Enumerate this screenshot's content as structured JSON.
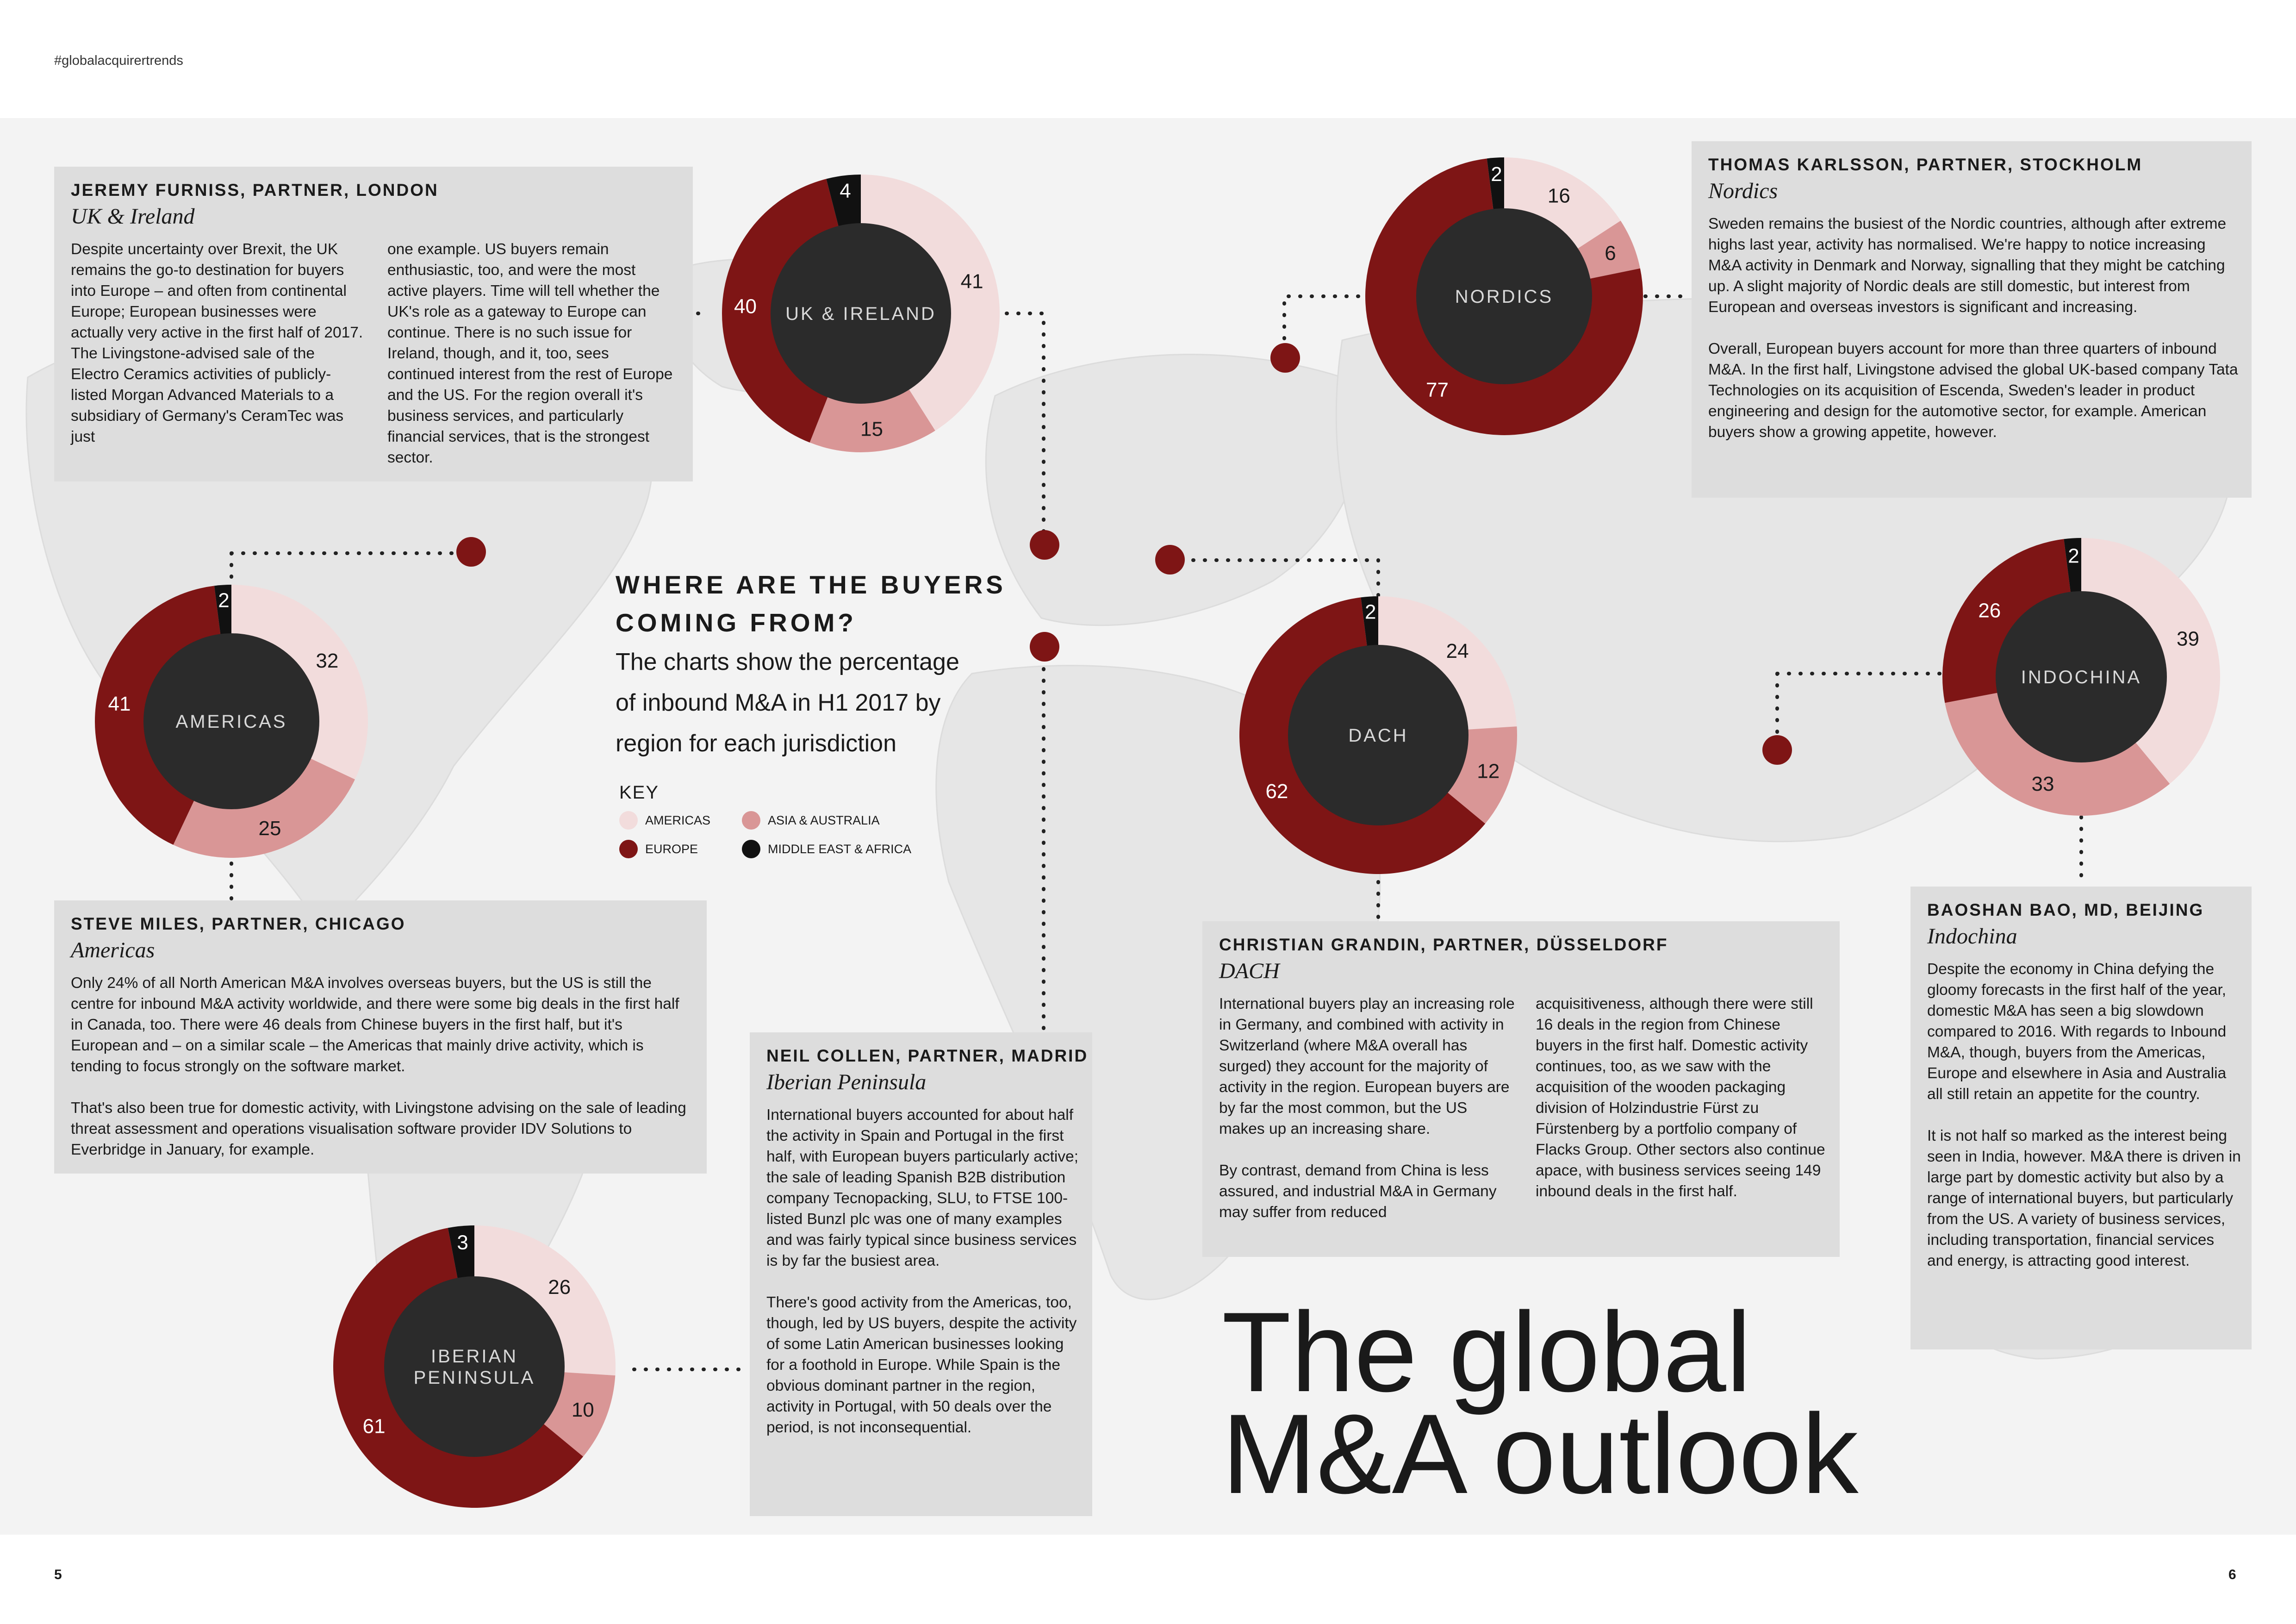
{
  "page": {
    "hashtag": "#globalacquirertrends",
    "page_left": "5",
    "page_right": "6",
    "title_line1": "The global",
    "title_line2": "M&A outlook"
  },
  "intro": {
    "heading_line1": "WHERE ARE THE BUYERS",
    "heading_line2": "COMING FROM?",
    "subtitle_line1": "The charts show the percentage",
    "subtitle_line2": "of inbound M&A in H1 2017 by",
    "subtitle_line3": "region for each jurisdiction"
  },
  "key": {
    "label": "KEY",
    "americas": "AMERICAS",
    "asia_australia": "ASIA & AUSTRALIA",
    "europe": "EUROPE",
    "middle_east_africa": "MIDDLE EAST & AFRICA"
  },
  "colors": {
    "americas": "#f2dcdc",
    "asia_australia": "#d99696",
    "europe": "#7e1515",
    "middle_east_africa": "#111111",
    "center": "#2b2b2b",
    "marker": "#7e1515"
  },
  "chart_data": [
    {
      "type": "pie",
      "title": "UK & IRELAND",
      "series": [
        "Americas",
        "Asia & Australia",
        "Europe",
        "Middle East & Africa"
      ],
      "values": [
        41,
        15,
        40,
        4
      ]
    },
    {
      "type": "pie",
      "title": "NORDICS",
      "series": [
        "Americas",
        "Asia & Australia",
        "Europe",
        "Middle East & Africa"
      ],
      "values": [
        16,
        6,
        77,
        2
      ]
    },
    {
      "type": "pie",
      "title": "AMERICAS",
      "series": [
        "Americas",
        "Asia & Australia",
        "Europe",
        "Middle East & Africa"
      ],
      "values": [
        32,
        25,
        41,
        2
      ]
    },
    {
      "type": "pie",
      "title": "DACH",
      "series": [
        "Americas",
        "Asia & Australia",
        "Europe",
        "Middle East & Africa"
      ],
      "values": [
        24,
        12,
        62,
        2
      ]
    },
    {
      "type": "pie",
      "title": "INDOCHINA",
      "series": [
        "Americas",
        "Asia & Australia",
        "Europe",
        "Middle East & Africa"
      ],
      "values": [
        39,
        33,
        26,
        2
      ]
    },
    {
      "type": "pie",
      "title": "IBERIAN PENINSULA",
      "title_lines": [
        "IBERIAN",
        "PENINSULA"
      ],
      "series": [
        "Americas",
        "Asia & Australia",
        "Europe",
        "Middle East & Africa"
      ],
      "values": [
        26,
        10,
        61,
        3
      ]
    }
  ],
  "boxes": {
    "uk": {
      "author": "JEREMY FURNISS, PARTNER, LONDON",
      "region": "UK & Ireland",
      "col1": "Despite uncertainty over Brexit, the UK remains the go-to destination for buyers into Europe – and often from continental Europe; European businesses were actually very active in the first half of 2017. The Livingstone-advised sale of the Electro Ceramics activities of publicly-listed Morgan Advanced Materials to a subsidiary of Germany's CeramTec was just",
      "col2": "one example. US buyers remain enthusiastic, too, and were the most active players. Time will tell whether the UK's role as a gateway to Europe can continue. There is no such issue for Ireland, though, and it, too, sees continued interest from the rest of Europe and the US. For the region overall it's business services, and particularly financial services, that is the strongest sector."
    },
    "nordics": {
      "author": "THOMAS KARLSSON, PARTNER, STOCKHOLM",
      "region": "Nordics",
      "p1": "Sweden remains the busiest of the Nordic countries, although after extreme highs last year, activity has normalised. We're happy to notice increasing M&A activity in Denmark and Norway, signalling that they might be catching up. A slight majority of Nordic deals are still domestic, but interest from European and overseas investors is significant and increasing.",
      "p2": "Overall, European buyers account for more than three quarters of inbound M&A. In the first half, Livingstone advised the global UK-based company Tata Technologies on its acquisition of Escenda, Sweden's leader in product engineering and design for the automotive sector, for example. American buyers show a growing appetite, however."
    },
    "americas": {
      "author": "STEVE MILES, PARTNER, CHICAGO",
      "region": "Americas",
      "p1": "Only 24% of all North American M&A involves overseas buyers, but the US is still the centre for inbound M&A activity worldwide, and there were some big deals in the first half in Canada, too. There were 46 deals from Chinese buyers in the first half, but it's European and – on a similar scale – the Americas that mainly drive activity, which is tending to focus strongly on the software market.",
      "p2": "That's also been true for domestic activity, with Livingstone advising on the sale of leading threat assessment and operations visualisation software provider IDV Solutions to Everbridge in January, for example."
    },
    "iberian": {
      "author": "NEIL COLLEN, PARTNER, MADRID",
      "region": "Iberian Peninsula",
      "p1": "International buyers accounted for about half the activity in Spain and Portugal in the first half, with European buyers particularly active; the sale of leading Spanish B2B distribution company Tecnopacking, SLU, to FTSE 100-listed Bunzl plc was one of many examples and was fairly typical since business services is by far the busiest area.",
      "p2": "There's good activity from the Americas, too, though, led by US buyers, despite the activity of some Latin American businesses looking for a foothold in Europe. While Spain is the obvious dominant partner in the region, activity in Portugal, with 50 deals over the period, is not inconsequential."
    },
    "dach": {
      "author": "CHRISTIAN GRANDIN, PARTNER, DÜSSELDORF",
      "region": "DACH",
      "c1p1": "International buyers play an increasing role in Germany, and combined with activity in Switzerland (where M&A overall has surged) they account for the majority of activity in the region. European buyers are by far the most common, but the US makes up an increasing share.",
      "c1p2": "By contrast, demand from China is less assured, and industrial M&A in Germany may suffer from reduced",
      "c2": "acquisitiveness, although there were still 16 deals in the region from Chinese buyers in the first half. Domestic activity continues, too, as we saw with the acquisition of the wooden packaging division of Holzindustrie Fürst zu Fürstenberg by a portfolio company of Flacks Group. Other sectors also continue apace, with business services seeing 149 inbound deals in the first half."
    },
    "indochina": {
      "author": "BAOSHAN BAO, MD, BEIJING",
      "region": "Indochina",
      "p1": "Despite the economy in China defying the gloomy forecasts in the first half of the year, domestic M&A has seen a big slowdown compared to 2016. With regards to Inbound M&A, though, buyers from the Americas, Europe and elsewhere in Asia and Australia all still retain an appetite for the country.",
      "p2": "It is not half so marked as the interest being seen in India, however. M&A there is driven in large part by domestic activity but also by a range of international buyers, but particularly from the US. A variety of business services, including transportation, financial services and energy, is attracting good interest."
    }
  }
}
